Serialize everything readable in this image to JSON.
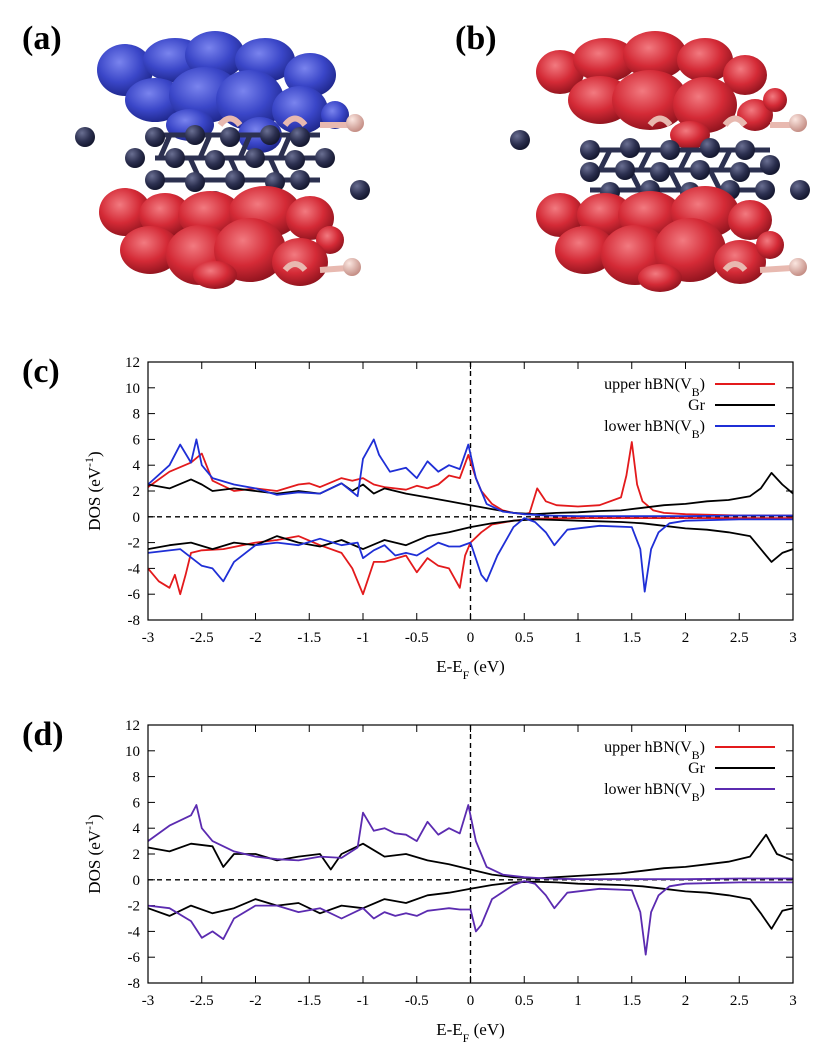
{
  "panels": {
    "a": "(a)",
    "b": "(b)",
    "c": "(c)",
    "d": "(d)"
  },
  "colors": {
    "upper": "#e31a1c",
    "gr": "#000000",
    "lower_c": "#1f2fd6",
    "lower_d": "#5b2bb0",
    "iso_blue": "#3a46c8",
    "iso_red": "#d42a36",
    "carbon": "#2c3050",
    "boron": "#e8b9b0",
    "nitrogen": "#5a82d6"
  },
  "chart_data": [
    {
      "type": "line",
      "panel": "(c)",
      "xlabel": "E-E",
      "xlabel_sub": "F",
      "xlabel_unit": " (eV)",
      "ylabel": "DOS (eV",
      "ylabel_sup": "-1",
      "ylabel_end": ")",
      "xlim": [
        -3,
        3
      ],
      "ylim": [
        -8,
        12
      ],
      "xticks": [
        "-3",
        "-2.5",
        "-2",
        "-1.5",
        "-1",
        "-0.5",
        "0",
        "0.5",
        "1",
        "1.5",
        "2",
        "2.5",
        "3"
      ],
      "yticks": [
        "-8",
        "-6",
        "-4",
        "-2",
        "0",
        "2",
        "4",
        "6",
        "8",
        "10",
        "12"
      ],
      "zero_lines": {
        "horizontal_y": 0,
        "vertical_x": 0
      },
      "legend_position": "top-right",
      "legend": [
        {
          "text": "upper hBN(V",
          "sub": "B",
          "end": ")",
          "color": "#e31a1c"
        },
        {
          "text": "Gr",
          "sub": "",
          "end": "",
          "color": "#000000"
        },
        {
          "text": "lower hBN(V",
          "sub": "B",
          "end": ")",
          "color": "#1f2fd6"
        }
      ],
      "series": [
        {
          "name": "upper hBN(V_B) up",
          "color": "#e31a1c",
          "x": [
            -3,
            -2.8,
            -2.6,
            -2.5,
            -2.4,
            -2.2,
            -2.0,
            -1.8,
            -1.6,
            -1.5,
            -1.4,
            -1.2,
            -1.1,
            -1.0,
            -0.9,
            -0.8,
            -0.6,
            -0.5,
            -0.4,
            -0.3,
            -0.2,
            -0.1,
            -0.02,
            0.05,
            0.1,
            0.2,
            0.3,
            0.4,
            0.5,
            0.55,
            0.62,
            0.7,
            0.8,
            1.0,
            1.2,
            1.4,
            1.45,
            1.5,
            1.55,
            1.6,
            1.7,
            1.8,
            2.0,
            2.5,
            3.0
          ],
          "y": [
            2.3,
            3.5,
            4.2,
            4.9,
            2.8,
            2.0,
            2.2,
            2.0,
            2.5,
            2.6,
            2.3,
            3.0,
            2.8,
            3.0,
            2.5,
            2.3,
            2.1,
            2.4,
            2.2,
            2.5,
            3.2,
            3.0,
            4.8,
            3.0,
            2.0,
            1.0,
            0.5,
            0.3,
            0.2,
            0.3,
            2.2,
            1.2,
            0.9,
            0.8,
            0.9,
            1.5,
            3.2,
            5.8,
            2.5,
            1.2,
            0.5,
            0.3,
            0.2,
            0.1,
            0.1
          ]
        },
        {
          "name": "Gr up",
          "color": "#000000",
          "x": [
            -3,
            -2.8,
            -2.6,
            -2.5,
            -2.4,
            -2.2,
            -2.0,
            -1.8,
            -1.6,
            -1.4,
            -1.2,
            -1.1,
            -1.0,
            -0.9,
            -0.8,
            -0.6,
            -0.4,
            -0.2,
            0,
            0.2,
            0.4,
            0.6,
            0.8,
            1.0,
            1.2,
            1.4,
            1.6,
            1.8,
            2.0,
            2.2,
            2.4,
            2.6,
            2.7,
            2.8,
            2.9,
            3.0
          ],
          "y": [
            2.5,
            2.2,
            2.9,
            2.5,
            2.0,
            2.2,
            2.0,
            1.8,
            2.0,
            1.8,
            2.6,
            2.0,
            2.5,
            1.8,
            2.2,
            1.8,
            1.5,
            1.2,
            0.9,
            0.6,
            0.3,
            0.2,
            0.3,
            0.35,
            0.45,
            0.5,
            0.7,
            0.9,
            1.0,
            1.2,
            1.3,
            1.6,
            2.2,
            3.4,
            2.5,
            1.8
          ]
        },
        {
          "name": "lower hBN(V_B) up",
          "color": "#1f2fd6",
          "x": [
            -3,
            -2.8,
            -2.7,
            -2.6,
            -2.55,
            -2.5,
            -2.4,
            -2.2,
            -2.0,
            -1.8,
            -1.6,
            -1.4,
            -1.2,
            -1.05,
            -1.0,
            -0.9,
            -0.85,
            -0.75,
            -0.6,
            -0.5,
            -0.4,
            -0.3,
            -0.2,
            -0.1,
            -0.02,
            0.05,
            0.15,
            0.3,
            0.5,
            0.7,
            1.0,
            1.5,
            2.0,
            2.5,
            3.0
          ],
          "y": [
            2.5,
            4.0,
            5.6,
            4.2,
            6.0,
            4.0,
            3.0,
            2.5,
            2.2,
            1.7,
            1.9,
            1.8,
            2.6,
            1.6,
            4.5,
            6.0,
            4.8,
            3.5,
            3.8,
            3.0,
            4.3,
            3.5,
            4.0,
            3.7,
            5.6,
            3.0,
            1.0,
            0.4,
            0.2,
            0.1,
            0.05,
            0.05,
            0.05,
            0.1,
            0.1
          ]
        },
        {
          "name": "upper hBN(V_B) down",
          "color": "#e31a1c",
          "x": [
            -3,
            -2.9,
            -2.8,
            -2.75,
            -2.7,
            -2.65,
            -2.6,
            -2.5,
            -2.3,
            -2.0,
            -1.8,
            -1.6,
            -1.4,
            -1.2,
            -1.1,
            -1.0,
            -0.9,
            -0.8,
            -0.6,
            -0.5,
            -0.4,
            -0.3,
            -0.2,
            -0.1,
            -0.05,
            0,
            0.1,
            0.2,
            0.4,
            0.6,
            1.0,
            1.5,
            2.0,
            2.5,
            3.0
          ],
          "y": [
            -4.0,
            -5.0,
            -5.5,
            -4.5,
            -6.0,
            -4.5,
            -2.8,
            -2.6,
            -2.5,
            -2.0,
            -1.8,
            -1.5,
            -2.2,
            -2.8,
            -4.0,
            -6.0,
            -3.5,
            -3.5,
            -3.0,
            -4.3,
            -3.2,
            -3.8,
            -4.0,
            -5.5,
            -3.0,
            -2.0,
            -1.2,
            -0.6,
            -0.3,
            -0.15,
            -0.1,
            -0.1,
            -0.1,
            -0.1,
            -0.1
          ]
        },
        {
          "name": "Gr down",
          "color": "#000000",
          "x": [
            -3,
            -2.8,
            -2.6,
            -2.4,
            -2.2,
            -2.0,
            -1.8,
            -1.6,
            -1.4,
            -1.2,
            -1.0,
            -0.8,
            -0.6,
            -0.4,
            -0.2,
            0,
            0.2,
            0.4,
            0.6,
            0.8,
            1.0,
            1.2,
            1.4,
            1.6,
            1.8,
            2.0,
            2.2,
            2.4,
            2.6,
            2.7,
            2.8,
            2.9,
            3.0
          ],
          "y": [
            -2.5,
            -2.2,
            -2.0,
            -2.5,
            -2.0,
            -2.2,
            -1.5,
            -2.0,
            -2.3,
            -1.8,
            -2.5,
            -1.8,
            -2.2,
            -1.5,
            -1.2,
            -0.8,
            -0.5,
            -0.3,
            -0.2,
            -0.25,
            -0.3,
            -0.35,
            -0.4,
            -0.5,
            -0.7,
            -0.9,
            -1.0,
            -1.2,
            -1.5,
            -2.5,
            -3.5,
            -2.8,
            -2.5
          ]
        },
        {
          "name": "lower hBN(V_B) down",
          "color": "#1f2fd6",
          "x": [
            -3,
            -2.7,
            -2.5,
            -2.4,
            -2.3,
            -2.2,
            -2.0,
            -1.8,
            -1.6,
            -1.4,
            -1.2,
            -1.05,
            -1.0,
            -0.9,
            -0.8,
            -0.7,
            -0.6,
            -0.5,
            -0.4,
            -0.3,
            -0.2,
            -0.1,
            0,
            0.1,
            0.15,
            0.25,
            0.4,
            0.5,
            0.6,
            0.7,
            0.78,
            0.9,
            1.2,
            1.5,
            1.58,
            1.62,
            1.68,
            1.75,
            1.85,
            2.0,
            2.5,
            3.0
          ],
          "y": [
            -2.8,
            -2.5,
            -3.8,
            -4.0,
            -5.0,
            -3.5,
            -2.2,
            -2.0,
            -2.2,
            -1.7,
            -2.2,
            -2.0,
            -3.2,
            -2.6,
            -2.2,
            -3.0,
            -2.8,
            -3.0,
            -2.5,
            -2.0,
            -2.3,
            -2.3,
            -2.0,
            -4.5,
            -5.0,
            -3.0,
            -0.8,
            -0.1,
            -0.4,
            -1.2,
            -2.2,
            -1.0,
            -0.7,
            -0.8,
            -2.5,
            -5.8,
            -2.5,
            -1.2,
            -0.5,
            -0.3,
            -0.2,
            -0.2
          ]
        }
      ]
    },
    {
      "type": "line",
      "panel": "(d)",
      "xlabel": "E-E",
      "xlabel_sub": "F",
      "xlabel_unit": " (eV)",
      "ylabel": "DOS (eV",
      "ylabel_sup": "-1",
      "ylabel_end": ")",
      "xlim": [
        -3,
        3
      ],
      "ylim": [
        -8,
        12
      ],
      "xticks": [
        "-3",
        "-2.5",
        "-2",
        "-1.5",
        "-1",
        "-0.5",
        "0",
        "0.5",
        "1",
        "1.5",
        "2",
        "2.5",
        "3"
      ],
      "yticks": [
        "-8",
        "-6",
        "-4",
        "-2",
        "0",
        "2",
        "4",
        "6",
        "8",
        "10",
        "12"
      ],
      "zero_lines": {
        "horizontal_y": 0,
        "vertical_x": 0
      },
      "legend_position": "top-right",
      "legend": [
        {
          "text": "upper hBN(V",
          "sub": "B",
          "end": ")",
          "color": "#e31a1c"
        },
        {
          "text": "Gr",
          "sub": "",
          "end": "",
          "color": "#000000"
        },
        {
          "text": "lower hBN(V",
          "sub": "B",
          "end": ")",
          "color": "#5b2bb0"
        }
      ],
      "series": [
        {
          "name": "Gr up",
          "color": "#000000",
          "x": [
            -3,
            -2.8,
            -2.6,
            -2.4,
            -2.3,
            -2.2,
            -2.0,
            -1.8,
            -1.6,
            -1.4,
            -1.3,
            -1.2,
            -1.0,
            -0.8,
            -0.6,
            -0.4,
            -0.2,
            0,
            0.2,
            0.4,
            0.6,
            0.8,
            1.0,
            1.2,
            1.4,
            1.6,
            1.8,
            2.0,
            2.2,
            2.4,
            2.6,
            2.75,
            2.85,
            3.0
          ],
          "y": [
            2.5,
            2.2,
            2.8,
            2.6,
            1.0,
            2.0,
            2.0,
            1.5,
            1.8,
            2.0,
            0.8,
            2.0,
            2.8,
            1.8,
            2.0,
            1.5,
            1.2,
            0.8,
            0.4,
            0.2,
            0.1,
            0.2,
            0.3,
            0.4,
            0.5,
            0.7,
            0.9,
            1.0,
            1.2,
            1.4,
            1.8,
            3.5,
            2.0,
            1.5
          ]
        },
        {
          "name": "lower hBN(V_B) up",
          "color": "#5b2bb0",
          "x": [
            -3,
            -2.8,
            -2.6,
            -2.55,
            -2.5,
            -2.4,
            -2.2,
            -2.0,
            -1.8,
            -1.6,
            -1.4,
            -1.2,
            -1.05,
            -1.0,
            -0.9,
            -0.8,
            -0.7,
            -0.6,
            -0.5,
            -0.4,
            -0.3,
            -0.2,
            -0.1,
            -0.02,
            0.05,
            0.15,
            0.3,
            0.5,
            0.7,
            1.0,
            1.5,
            2.0,
            2.5,
            3.0
          ],
          "y": [
            3.0,
            4.2,
            5.0,
            5.8,
            4.0,
            3.0,
            2.2,
            1.8,
            1.6,
            1.5,
            1.8,
            1.7,
            2.5,
            5.2,
            3.8,
            4.0,
            3.6,
            3.5,
            3.0,
            4.5,
            3.5,
            4.0,
            3.6,
            5.8,
            3.0,
            1.0,
            0.4,
            0.2,
            0.1,
            0.05,
            0.05,
            0.05,
            0.1,
            0.1
          ]
        },
        {
          "name": "Gr down",
          "color": "#000000",
          "x": [
            -3,
            -2.8,
            -2.6,
            -2.4,
            -2.2,
            -2.0,
            -1.8,
            -1.6,
            -1.4,
            -1.2,
            -1.0,
            -0.8,
            -0.6,
            -0.4,
            -0.2,
            0,
            0.2,
            0.4,
            0.6,
            0.8,
            1.0,
            1.2,
            1.4,
            1.6,
            1.8,
            2.0,
            2.2,
            2.4,
            2.6,
            2.7,
            2.8,
            2.9,
            3.0
          ],
          "y": [
            -2.2,
            -2.8,
            -2.0,
            -2.6,
            -2.2,
            -1.5,
            -2.0,
            -1.8,
            -2.6,
            -2.0,
            -2.2,
            -1.5,
            -1.8,
            -1.2,
            -1.0,
            -0.7,
            -0.4,
            -0.2,
            -0.15,
            -0.2,
            -0.3,
            -0.35,
            -0.4,
            -0.5,
            -0.7,
            -0.9,
            -1.0,
            -1.2,
            -1.5,
            -2.6,
            -3.8,
            -2.4,
            -2.2
          ]
        },
        {
          "name": "lower hBN(V_B) down",
          "color": "#5b2bb0",
          "x": [
            -3,
            -2.8,
            -2.6,
            -2.5,
            -2.4,
            -2.3,
            -2.2,
            -2.0,
            -1.8,
            -1.6,
            -1.4,
            -1.2,
            -1.0,
            -0.9,
            -0.8,
            -0.7,
            -0.6,
            -0.5,
            -0.4,
            -0.3,
            -0.2,
            -0.1,
            0,
            0.05,
            0.1,
            0.2,
            0.4,
            0.5,
            0.6,
            0.7,
            0.78,
            0.9,
            1.2,
            1.5,
            1.58,
            1.63,
            1.68,
            1.75,
            1.85,
            2.0,
            2.5,
            3.0
          ],
          "y": [
            -2.0,
            -2.2,
            -3.2,
            -4.5,
            -4.0,
            -4.6,
            -3.0,
            -2.0,
            -2.0,
            -2.5,
            -2.2,
            -3.0,
            -2.2,
            -3.0,
            -2.5,
            -2.8,
            -2.6,
            -2.8,
            -2.4,
            -2.3,
            -2.2,
            -2.3,
            -2.3,
            -4.0,
            -3.5,
            -1.5,
            -0.4,
            -0.1,
            -0.3,
            -1.2,
            -2.2,
            -1.0,
            -0.7,
            -0.8,
            -2.5,
            -5.8,
            -2.5,
            -1.2,
            -0.5,
            -0.3,
            -0.2,
            -0.2
          ]
        }
      ]
    }
  ]
}
